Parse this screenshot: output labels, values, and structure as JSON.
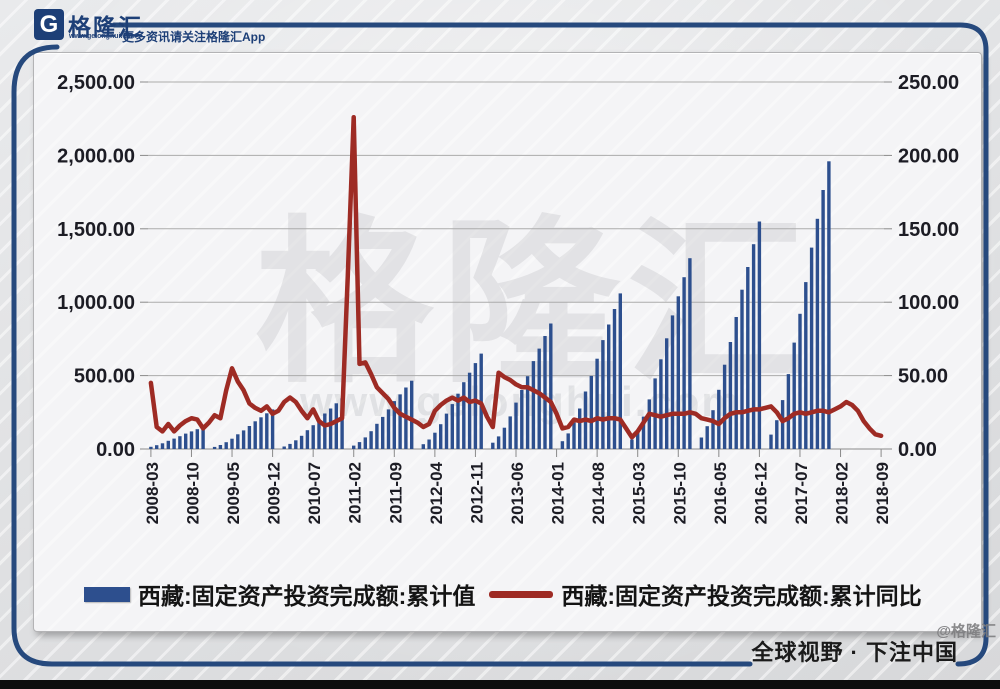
{
  "header": {
    "logo_letter": "G",
    "logo_text": "格隆汇",
    "logo_url_text": "www.gelonghui.com",
    "tagline": "更多资讯请关注格隆汇App"
  },
  "watermark": {
    "big_text": "格隆汇",
    "sub_text": "www.gelonghui.com"
  },
  "legend": {
    "bar_label": "西藏:固定资产投资完成额:累计值",
    "line_label": "西藏:固定资产投资完成额:累计同比"
  },
  "footer": {
    "slogan": "全球视野 · 下注中国",
    "watermark": "@格隆汇"
  },
  "colors": {
    "bar": "#2d4f8e",
    "line": "#9e2b24",
    "frame": "#26497d",
    "axis_text": "#1c1c24",
    "gridline": "#ababab",
    "axis_line": "#8a8a8a"
  },
  "chart_data": {
    "type": "combo-bar-line",
    "title": "",
    "grid": true,
    "legend_position": "bottom",
    "x_tick_every": 7,
    "x_tick_labels": [
      "2008-03",
      "2008-10",
      "2009-05",
      "2009-12",
      "2010-07",
      "2011-02",
      "2011-09",
      "2012-04",
      "2012-11",
      "2013-06",
      "2014-01",
      "2014-08",
      "2015-03",
      "2015-10",
      "2016-05",
      "2016-12",
      "2017-07",
      "2018-02",
      "2018-09"
    ],
    "left_axis": {
      "max": 2500,
      "step": 500,
      "labels": [
        "0.00",
        "500.00",
        "1,000.00",
        "1,500.00",
        "2,000.00",
        "2,500.00"
      ]
    },
    "right_axis": {
      "max": 250,
      "step": 50,
      "labels": [
        "0.00",
        "50.00",
        "100.00",
        "150.00",
        "200.00",
        "250.00"
      ]
    },
    "series_names": {
      "bar": "西藏:固定资产投资完成额:累计值",
      "line": "西藏:固定资产投资完成额:累计同比"
    },
    "series": [
      [
        "2008-03",
        15,
        45
      ],
      [
        "2008-04",
        26,
        15
      ],
      [
        "2008-05",
        39,
        12
      ],
      [
        "2008-06",
        56,
        17
      ],
      [
        "2008-07",
        71,
        12
      ],
      [
        "2008-08",
        87,
        16
      ],
      [
        "2008-09",
        105,
        19
      ],
      [
        "2008-10",
        120,
        21
      ],
      [
        "2008-11",
        135,
        20
      ],
      [
        "2008-12",
        150,
        14
      ],
      [
        "2009-01",
        null,
        18
      ],
      [
        "2009-02",
        14,
        23
      ],
      [
        "2009-03",
        27,
        21
      ],
      [
        "2009-04",
        46,
        40
      ],
      [
        "2009-05",
        70,
        55
      ],
      [
        "2009-06",
        100,
        46
      ],
      [
        "2009-07",
        127,
        40
      ],
      [
        "2009-08",
        157,
        31
      ],
      [
        "2009-09",
        189,
        28
      ],
      [
        "2009-10",
        216,
        26
      ],
      [
        "2009-11",
        243,
        29
      ],
      [
        "2009-12",
        270,
        24
      ],
      [
        "2010-01",
        null,
        26
      ],
      [
        "2010-02",
        17,
        32
      ],
      [
        "2010-03",
        35,
        35
      ],
      [
        "2010-04",
        59,
        32
      ],
      [
        "2010-05",
        90,
        26
      ],
      [
        "2010-06",
        128,
        21
      ],
      [
        "2010-07",
        162,
        27
      ],
      [
        "2010-08",
        200,
        19
      ],
      [
        "2010-09",
        242,
        16
      ],
      [
        "2010-10",
        276,
        17
      ],
      [
        "2010-11",
        311,
        19
      ],
      [
        "2010-12",
        345,
        21
      ],
      [
        "2011-01",
        null,
        120
      ],
      [
        "2011-02",
        23,
        226
      ],
      [
        "2011-03",
        47,
        58
      ],
      [
        "2011-04",
        79,
        59
      ],
      [
        "2011-05",
        121,
        51
      ],
      [
        "2011-06",
        172,
        42
      ],
      [
        "2011-07",
        219,
        38
      ],
      [
        "2011-08",
        270,
        34
      ],
      [
        "2011-09",
        326,
        28
      ],
      [
        "2011-10",
        372,
        24
      ],
      [
        "2011-11",
        419,
        22
      ],
      [
        "2011-12",
        465,
        20
      ],
      [
        "2012-01",
        null,
        18
      ],
      [
        "2012-02",
        33,
        15
      ],
      [
        "2012-03",
        65,
        17
      ],
      [
        "2012-04",
        111,
        26
      ],
      [
        "2012-05",
        169,
        30
      ],
      [
        "2012-06",
        241,
        33
      ],
      [
        "2012-07",
        306,
        35
      ],
      [
        "2012-08",
        377,
        33
      ],
      [
        "2012-09",
        455,
        35
      ],
      [
        "2012-10",
        520,
        32
      ],
      [
        "2012-11",
        585,
        33
      ],
      [
        "2012-12",
        650,
        31
      ],
      [
        "2013-01",
        null,
        22
      ],
      [
        "2013-02",
        43,
        15
      ],
      [
        "2013-03",
        86,
        52
      ],
      [
        "2013-04",
        145,
        49
      ],
      [
        "2013-05",
        222,
        47
      ],
      [
        "2013-06",
        316,
        44
      ],
      [
        "2013-07",
        402,
        42
      ],
      [
        "2013-08",
        496,
        42
      ],
      [
        "2013-09",
        599,
        40
      ],
      [
        "2013-10",
        684,
        38
      ],
      [
        "2013-11",
        770,
        35
      ],
      [
        "2013-12",
        855,
        32
      ],
      [
        "2014-01",
        null,
        24
      ],
      [
        "2014-02",
        53,
        14
      ],
      [
        "2014-03",
        106,
        15
      ],
      [
        "2014-04",
        180,
        20
      ],
      [
        "2014-05",
        276,
        19
      ],
      [
        "2014-06",
        392,
        20
      ],
      [
        "2014-07",
        498,
        19
      ],
      [
        "2014-08",
        615,
        21
      ],
      [
        "2014-09",
        742,
        20
      ],
      [
        "2014-10",
        848,
        21
      ],
      [
        "2014-11",
        954,
        21
      ],
      [
        "2014-12",
        1060,
        20
      ],
      [
        "2015-01",
        null,
        14
      ],
      [
        "2015-02",
        65,
        8
      ],
      [
        "2015-03",
        130,
        12
      ],
      [
        "2015-04",
        221,
        18
      ],
      [
        "2015-05",
        338,
        24
      ],
      [
        "2015-06",
        481,
        23
      ],
      [
        "2015-07",
        611,
        22
      ],
      [
        "2015-08",
        754,
        23
      ],
      [
        "2015-09",
        910,
        24
      ],
      [
        "2015-10",
        1040,
        24
      ],
      [
        "2015-11",
        1170,
        24
      ],
      [
        "2015-12",
        1300,
        25
      ],
      [
        "2016-01",
        null,
        24
      ],
      [
        "2016-02",
        78,
        21
      ],
      [
        "2016-03",
        155,
        20
      ],
      [
        "2016-04",
        264,
        19
      ],
      [
        "2016-05",
        403,
        17
      ],
      [
        "2016-06",
        574,
        21
      ],
      [
        "2016-07",
        729,
        24
      ],
      [
        "2016-08",
        899,
        25
      ],
      [
        "2016-09",
        1085,
        25
      ],
      [
        "2016-10",
        1240,
        26
      ],
      [
        "2016-11",
        1395,
        27
      ],
      [
        "2016-12",
        1550,
        27
      ],
      [
        "2017-01",
        null,
        28
      ],
      [
        "2017-02",
        98,
        29
      ],
      [
        "2017-03",
        196,
        25
      ],
      [
        "2017-04",
        333,
        19
      ],
      [
        "2017-05",
        510,
        21
      ],
      [
        "2017-06",
        725,
        24
      ],
      [
        "2017-07",
        921,
        25
      ],
      [
        "2017-08",
        1137,
        24
      ],
      [
        "2017-09",
        1372,
        25
      ],
      [
        "2017-10",
        1568,
        26
      ],
      [
        "2017-11",
        1764,
        26
      ],
      [
        "2017-12",
        1960,
        25
      ],
      [
        "2018-01",
        null,
        27
      ],
      [
        "2018-02",
        null,
        29
      ],
      [
        "2018-03",
        null,
        32
      ],
      [
        "2018-04",
        null,
        30
      ],
      [
        "2018-05",
        null,
        26
      ],
      [
        "2018-06",
        null,
        19
      ],
      [
        "2018-07",
        null,
        14
      ],
      [
        "2018-08",
        null,
        10
      ],
      [
        "2018-09",
        null,
        9
      ]
    ]
  }
}
